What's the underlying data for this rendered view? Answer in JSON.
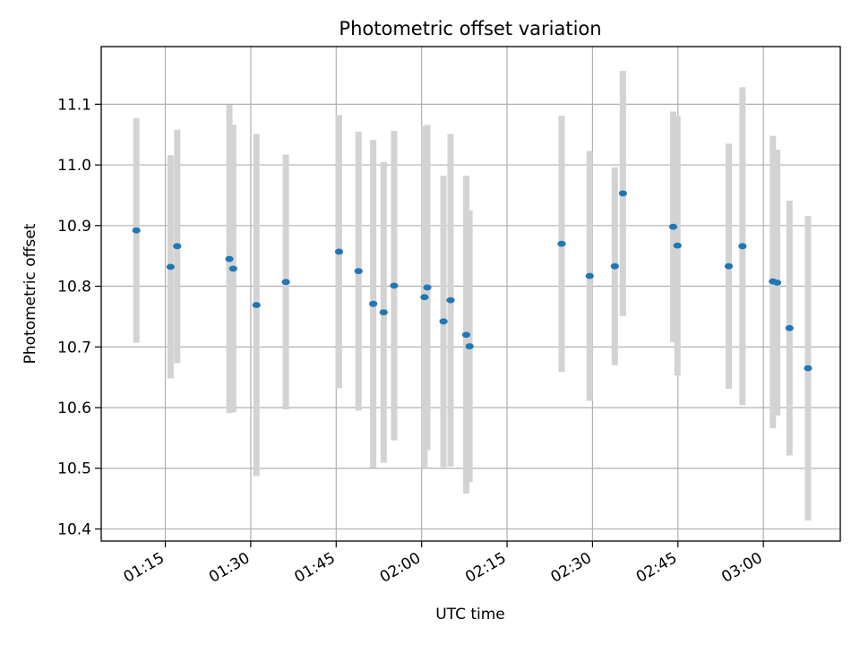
{
  "chart_data": {
    "type": "scatter",
    "title": "Photometric offset variation",
    "xlabel": "UTC time",
    "ylabel": "Photometric offset",
    "xlim": [
      "01:03:45",
      "03:13:30"
    ],
    "ylim": [
      10.38,
      11.195
    ],
    "x_ticks": [
      "01:15",
      "01:30",
      "01:45",
      "02:00",
      "02:15",
      "02:30",
      "02:45",
      "03:00"
    ],
    "y_ticks": [
      "10.4",
      "10.5",
      "10.6",
      "10.7",
      "10.8",
      "10.9",
      "11.0",
      "11.1"
    ],
    "grid": true,
    "legend": "none",
    "marker_color": "#1f77b4",
    "errorbar_color": "#d3d3d3",
    "points": [
      {
        "x": "01:09:55",
        "y": 10.892,
        "low": 10.707,
        "high": 11.077
      },
      {
        "x": "01:15:55",
        "y": 10.832,
        "low": 10.648,
        "high": 11.016
      },
      {
        "x": "01:17:05",
        "y": 10.866,
        "low": 10.673,
        "high": 11.058
      },
      {
        "x": "01:26:15",
        "y": 10.845,
        "low": 10.591,
        "high": 11.099
      },
      {
        "x": "01:26:55",
        "y": 10.829,
        "low": 10.592,
        "high": 11.066
      },
      {
        "x": "01:31:00",
        "y": 10.769,
        "low": 10.487,
        "high": 11.051
      },
      {
        "x": "01:36:10",
        "y": 10.807,
        "low": 10.597,
        "high": 11.017
      },
      {
        "x": "01:45:30",
        "y": 10.857,
        "low": 10.632,
        "high": 11.082
      },
      {
        "x": "01:48:55",
        "y": 10.825,
        "low": 10.595,
        "high": 11.055
      },
      {
        "x": "01:51:30",
        "y": 10.771,
        "low": 10.501,
        "high": 11.041
      },
      {
        "x": "01:53:20",
        "y": 10.757,
        "low": 10.509,
        "high": 11.005
      },
      {
        "x": "01:55:10",
        "y": 10.801,
        "low": 10.546,
        "high": 11.056
      },
      {
        "x": "02:00:30",
        "y": 10.782,
        "low": 10.5,
        "high": 11.064
      },
      {
        "x": "02:01:00",
        "y": 10.798,
        "low": 10.53,
        "high": 11.066
      },
      {
        "x": "02:03:50",
        "y": 10.742,
        "low": 10.502,
        "high": 10.982
      },
      {
        "x": "02:05:05",
        "y": 10.777,
        "low": 10.503,
        "high": 11.051
      },
      {
        "x": "02:07:50",
        "y": 10.72,
        "low": 10.458,
        "high": 10.982
      },
      {
        "x": "02:08:25",
        "y": 10.701,
        "low": 10.477,
        "high": 10.925
      },
      {
        "x": "02:24:35",
        "y": 10.87,
        "low": 10.659,
        "high": 11.081
      },
      {
        "x": "02:29:30",
        "y": 10.817,
        "low": 10.611,
        "high": 11.023
      },
      {
        "x": "02:33:55",
        "y": 10.833,
        "low": 10.67,
        "high": 10.996
      },
      {
        "x": "02:35:20",
        "y": 10.953,
        "low": 10.751,
        "high": 11.155
      },
      {
        "x": "02:44:10",
        "y": 10.898,
        "low": 10.708,
        "high": 11.088
      },
      {
        "x": "02:44:55",
        "y": 10.867,
        "low": 10.653,
        "high": 11.081
      },
      {
        "x": "02:53:55",
        "y": 10.833,
        "low": 10.631,
        "high": 11.035
      },
      {
        "x": "02:56:20",
        "y": 10.866,
        "low": 10.604,
        "high": 11.128
      },
      {
        "x": "03:01:40",
        "y": 10.808,
        "low": 10.566,
        "high": 11.048
      },
      {
        "x": "03:02:25",
        "y": 10.806,
        "low": 10.587,
        "high": 11.025
      },
      {
        "x": "03:04:35",
        "y": 10.731,
        "low": 10.521,
        "high": 10.941
      },
      {
        "x": "03:07:50",
        "y": 10.665,
        "low": 10.414,
        "high": 10.916
      }
    ]
  }
}
